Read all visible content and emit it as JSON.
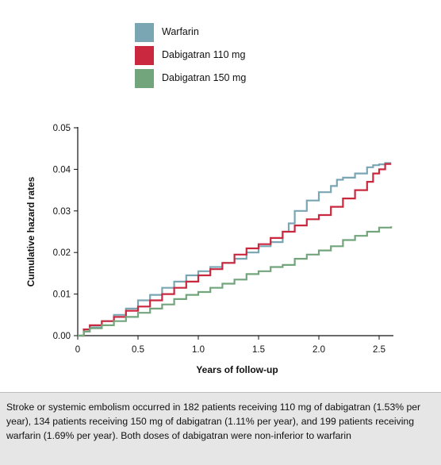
{
  "legend": [
    {
      "label": "Warfarin",
      "color": "#7aa6b4"
    },
    {
      "label": "Dabigatran 110 mg",
      "color": "#c9283e"
    },
    {
      "label": "Dabigatran 150 mg",
      "color": "#72a57b"
    }
  ],
  "caption": "Stroke or systemic embolism occurred in 182 patients receiving 110 mg of dabigatran (1.53% per year), 134 patients receiving 150 mg of dabigatran (1.11% per year), and 199 patients receiving warfarin (1.69% per year). Both doses of dabigatran were non-inferior to warfarin",
  "chart_data": {
    "type": "line",
    "step": true,
    "title": "",
    "xlabel": "Years of follow-up",
    "ylabel": "Cumulative hazard rates",
    "xlim": [
      0,
      2.6
    ],
    "ylim": [
      0,
      0.05
    ],
    "xticks": [
      "0",
      "0.5",
      "1.0",
      "1.5",
      "2.0",
      "2.5"
    ],
    "yticks": [
      "0.00",
      "0.01",
      "0.02",
      "0.03",
      "0.04",
      "0.05"
    ],
    "legend_position": "top",
    "grid": false,
    "series": [
      {
        "name": "Warfarin",
        "color": "#7aa6b4",
        "x": [
          0,
          0.05,
          0.1,
          0.2,
          0.3,
          0.4,
          0.5,
          0.6,
          0.7,
          0.8,
          0.9,
          1.0,
          1.1,
          1.2,
          1.3,
          1.4,
          1.5,
          1.6,
          1.7,
          1.75,
          1.8,
          1.9,
          2.0,
          2.1,
          2.15,
          2.2,
          2.3,
          2.4,
          2.45,
          2.5,
          2.55,
          2.6
        ],
        "y": [
          0,
          0.001,
          0.002,
          0.0035,
          0.005,
          0.0065,
          0.0085,
          0.0098,
          0.0115,
          0.013,
          0.0145,
          0.0155,
          0.0165,
          0.0175,
          0.0185,
          0.02,
          0.0215,
          0.0225,
          0.025,
          0.027,
          0.03,
          0.0325,
          0.0345,
          0.036,
          0.0375,
          0.038,
          0.039,
          0.0405,
          0.041,
          0.0412,
          0.0415,
          0.0415
        ]
      },
      {
        "name": "Dabigatran 110 mg",
        "color": "#c9283e",
        "x": [
          0,
          0.05,
          0.1,
          0.2,
          0.3,
          0.4,
          0.5,
          0.6,
          0.7,
          0.8,
          0.9,
          1.0,
          1.1,
          1.2,
          1.3,
          1.4,
          1.5,
          1.6,
          1.7,
          1.8,
          1.9,
          2.0,
          2.1,
          2.2,
          2.3,
          2.4,
          2.45,
          2.5,
          2.55,
          2.6
        ],
        "y": [
          0,
          0.0015,
          0.0025,
          0.0035,
          0.0045,
          0.006,
          0.007,
          0.0085,
          0.01,
          0.0115,
          0.013,
          0.0145,
          0.016,
          0.0175,
          0.0195,
          0.021,
          0.022,
          0.0235,
          0.025,
          0.0265,
          0.028,
          0.029,
          0.031,
          0.033,
          0.035,
          0.037,
          0.039,
          0.04,
          0.0413,
          0.0413
        ]
      },
      {
        "name": "Dabigatran 150 mg",
        "color": "#72a57b",
        "x": [
          0,
          0.05,
          0.1,
          0.2,
          0.3,
          0.4,
          0.5,
          0.6,
          0.7,
          0.8,
          0.9,
          1.0,
          1.1,
          1.2,
          1.3,
          1.4,
          1.5,
          1.6,
          1.7,
          1.8,
          1.9,
          2.0,
          2.1,
          2.2,
          2.3,
          2.4,
          2.5,
          2.6
        ],
        "y": [
          0,
          0.001,
          0.0018,
          0.0025,
          0.0035,
          0.0045,
          0.0055,
          0.0065,
          0.0075,
          0.0088,
          0.0098,
          0.0105,
          0.0115,
          0.0125,
          0.0135,
          0.0148,
          0.0155,
          0.0165,
          0.017,
          0.0185,
          0.0195,
          0.0205,
          0.0215,
          0.023,
          0.024,
          0.025,
          0.026,
          0.0263
        ]
      }
    ]
  }
}
